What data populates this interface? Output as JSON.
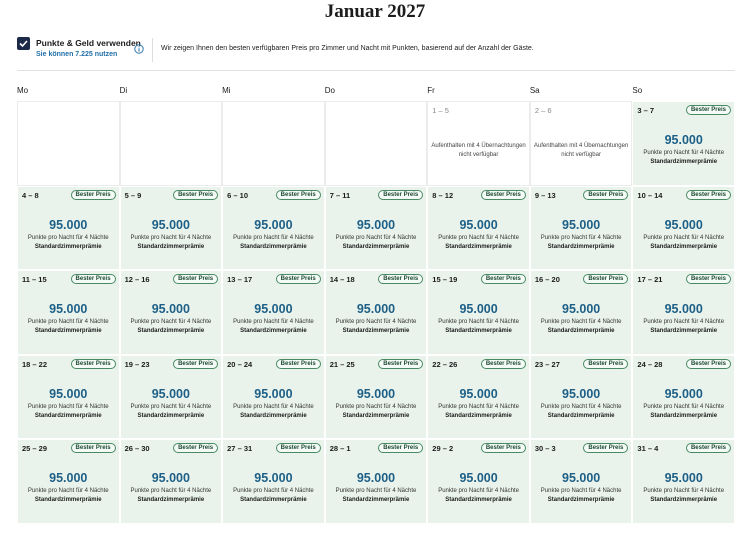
{
  "title": "Januar 2027",
  "toggle": {
    "label": "Punkte & Geld verwenden",
    "sublabel": "Sie können 7.225 nutzen"
  },
  "info": "Wir zeigen Ihnen den besten verfügbaren Preis pro Zimmer und Nacht mit Punkten, basierend auf der Anzahl der Gäste.",
  "weekdays": [
    "Mo",
    "Di",
    "Mi",
    "Do",
    "Fr",
    "Sa",
    "So"
  ],
  "weeks": [
    [
      null,
      null,
      null,
      null,
      {
        "dates": "1 – 5",
        "note": "Aufenthalten mit 4 Übernachtungen nicht verfügbar"
      },
      {
        "dates": "2 – 6",
        "note": "Aufenthalten mit 4 Übernachtungen nicht verfügbar"
      },
      {
        "dates": "3 – 7",
        "badge": "Bester Preis",
        "points": "95.000",
        "unit": "Punkte pro Nacht für 4 Nächte",
        "room": "Standardzimmerprämie"
      }
    ],
    [
      {
        "dates": "4 – 8",
        "badge": "Bester Preis",
        "points": "95.000",
        "unit": "Punkte pro Nacht für 4 Nächte",
        "room": "Standardzimmerprämie"
      },
      {
        "dates": "5 – 9",
        "badge": "Bester Preis",
        "points": "95.000",
        "unit": "Punkte pro Nacht für 4 Nächte",
        "room": "Standardzimmerprämie"
      },
      {
        "dates": "6 – 10",
        "badge": "Bester Preis",
        "points": "95.000",
        "unit": "Punkte pro Nacht für 4 Nächte",
        "room": "Standardzimmerprämie"
      },
      {
        "dates": "7 – 11",
        "badge": "Bester Preis",
        "points": "95.000",
        "unit": "Punkte pro Nacht für 4 Nächte",
        "room": "Standardzimmerprämie"
      },
      {
        "dates": "8 – 12",
        "badge": "Bester Preis",
        "points": "95.000",
        "unit": "Punkte pro Nacht für 4 Nächte",
        "room": "Standardzimmerprämie"
      },
      {
        "dates": "9 – 13",
        "badge": "Bester Preis",
        "points": "95.000",
        "unit": "Punkte pro Nacht für 4 Nächte",
        "room": "Standardzimmerprämie"
      },
      {
        "dates": "10 – 14",
        "badge": "Bester Preis",
        "points": "95.000",
        "unit": "Punkte pro Nacht für 4 Nächte",
        "room": "Standardzimmerprämie"
      }
    ],
    [
      {
        "dates": "11 – 15",
        "badge": "Bester Preis",
        "points": "95.000",
        "unit": "Punkte pro Nacht für 4 Nächte",
        "room": "Standardzimmerprämie"
      },
      {
        "dates": "12 – 16",
        "badge": "Bester Preis",
        "points": "95.000",
        "unit": "Punkte pro Nacht für 4 Nächte",
        "room": "Standardzimmerprämie"
      },
      {
        "dates": "13 – 17",
        "badge": "Bester Preis",
        "points": "95.000",
        "unit": "Punkte pro Nacht für 4 Nächte",
        "room": "Standardzimmerprämie"
      },
      {
        "dates": "14 – 18",
        "badge": "Bester Preis",
        "points": "95.000",
        "unit": "Punkte pro Nacht für 4 Nächte",
        "room": "Standardzimmerprämie"
      },
      {
        "dates": "15 – 19",
        "badge": "Bester Preis",
        "points": "95.000",
        "unit": "Punkte pro Nacht für 4 Nächte",
        "room": "Standardzimmerprämie"
      },
      {
        "dates": "16 – 20",
        "badge": "Bester Preis",
        "points": "95.000",
        "unit": "Punkte pro Nacht für 4 Nächte",
        "room": "Standardzimmerprämie"
      },
      {
        "dates": "17 – 21",
        "badge": "Bester Preis",
        "points": "95.000",
        "unit": "Punkte pro Nacht für 4 Nächte",
        "room": "Standardzimmerprämie"
      }
    ],
    [
      {
        "dates": "18 – 22",
        "badge": "Bester Preis",
        "points": "95.000",
        "unit": "Punkte pro Nacht für 4 Nächte",
        "room": "Standardzimmerprämie"
      },
      {
        "dates": "19 – 23",
        "badge": "Bester Preis",
        "points": "95.000",
        "unit": "Punkte pro Nacht für 4 Nächte",
        "room": "Standardzimmerprämie"
      },
      {
        "dates": "20 – 24",
        "badge": "Bester Preis",
        "points": "95.000",
        "unit": "Punkte pro Nacht für 4 Nächte",
        "room": "Standardzimmerprämie"
      },
      {
        "dates": "21 – 25",
        "badge": "Bester Preis",
        "points": "95.000",
        "unit": "Punkte pro Nacht für 4 Nächte",
        "room": "Standardzimmerprämie"
      },
      {
        "dates": "22 – 26",
        "badge": "Bester Preis",
        "points": "95.000",
        "unit": "Punkte pro Nacht für 4 Nächte",
        "room": "Standardzimmerprämie"
      },
      {
        "dates": "23 – 27",
        "badge": "Bester Preis",
        "points": "95.000",
        "unit": "Punkte pro Nacht für 4 Nächte",
        "room": "Standardzimmerprämie"
      },
      {
        "dates": "24 – 28",
        "badge": "Bester Preis",
        "points": "95.000",
        "unit": "Punkte pro Nacht für 4 Nächte",
        "room": "Standardzimmerprämie"
      }
    ],
    [
      {
        "dates": "25 – 29",
        "badge": "Bester Preis",
        "points": "95.000",
        "unit": "Punkte pro Nacht für 4 Nächte",
        "room": "Standardzimmerprämie"
      },
      {
        "dates": "26 – 30",
        "badge": "Bester Preis",
        "points": "95.000",
        "unit": "Punkte pro Nacht für 4 Nächte",
        "room": "Standardzimmerprämie"
      },
      {
        "dates": "27 – 31",
        "badge": "Bester Preis",
        "points": "95.000",
        "unit": "Punkte pro Nacht für 4 Nächte",
        "room": "Standardzimmerprämie"
      },
      {
        "dates": "28 – 1",
        "badge": "Bester Preis",
        "points": "95.000",
        "unit": "Punkte pro Nacht für 4 Nächte",
        "room": "Standardzimmerprämie"
      },
      {
        "dates": "29 – 2",
        "badge": "Bester Preis",
        "points": "95.000",
        "unit": "Punkte pro Nacht für 4 Nächte",
        "room": "Standardzimmerprämie"
      },
      {
        "dates": "30 – 3",
        "badge": "Bester Preis",
        "points": "95.000",
        "unit": "Punkte pro Nacht für 4 Nächte",
        "room": "Standardzimmerprämie"
      },
      {
        "dates": "31 – 4",
        "badge": "Bester Preis",
        "points": "95.000",
        "unit": "Punkte pro Nacht für 4 Nächte",
        "room": "Standardzimmerprämie"
      }
    ]
  ]
}
